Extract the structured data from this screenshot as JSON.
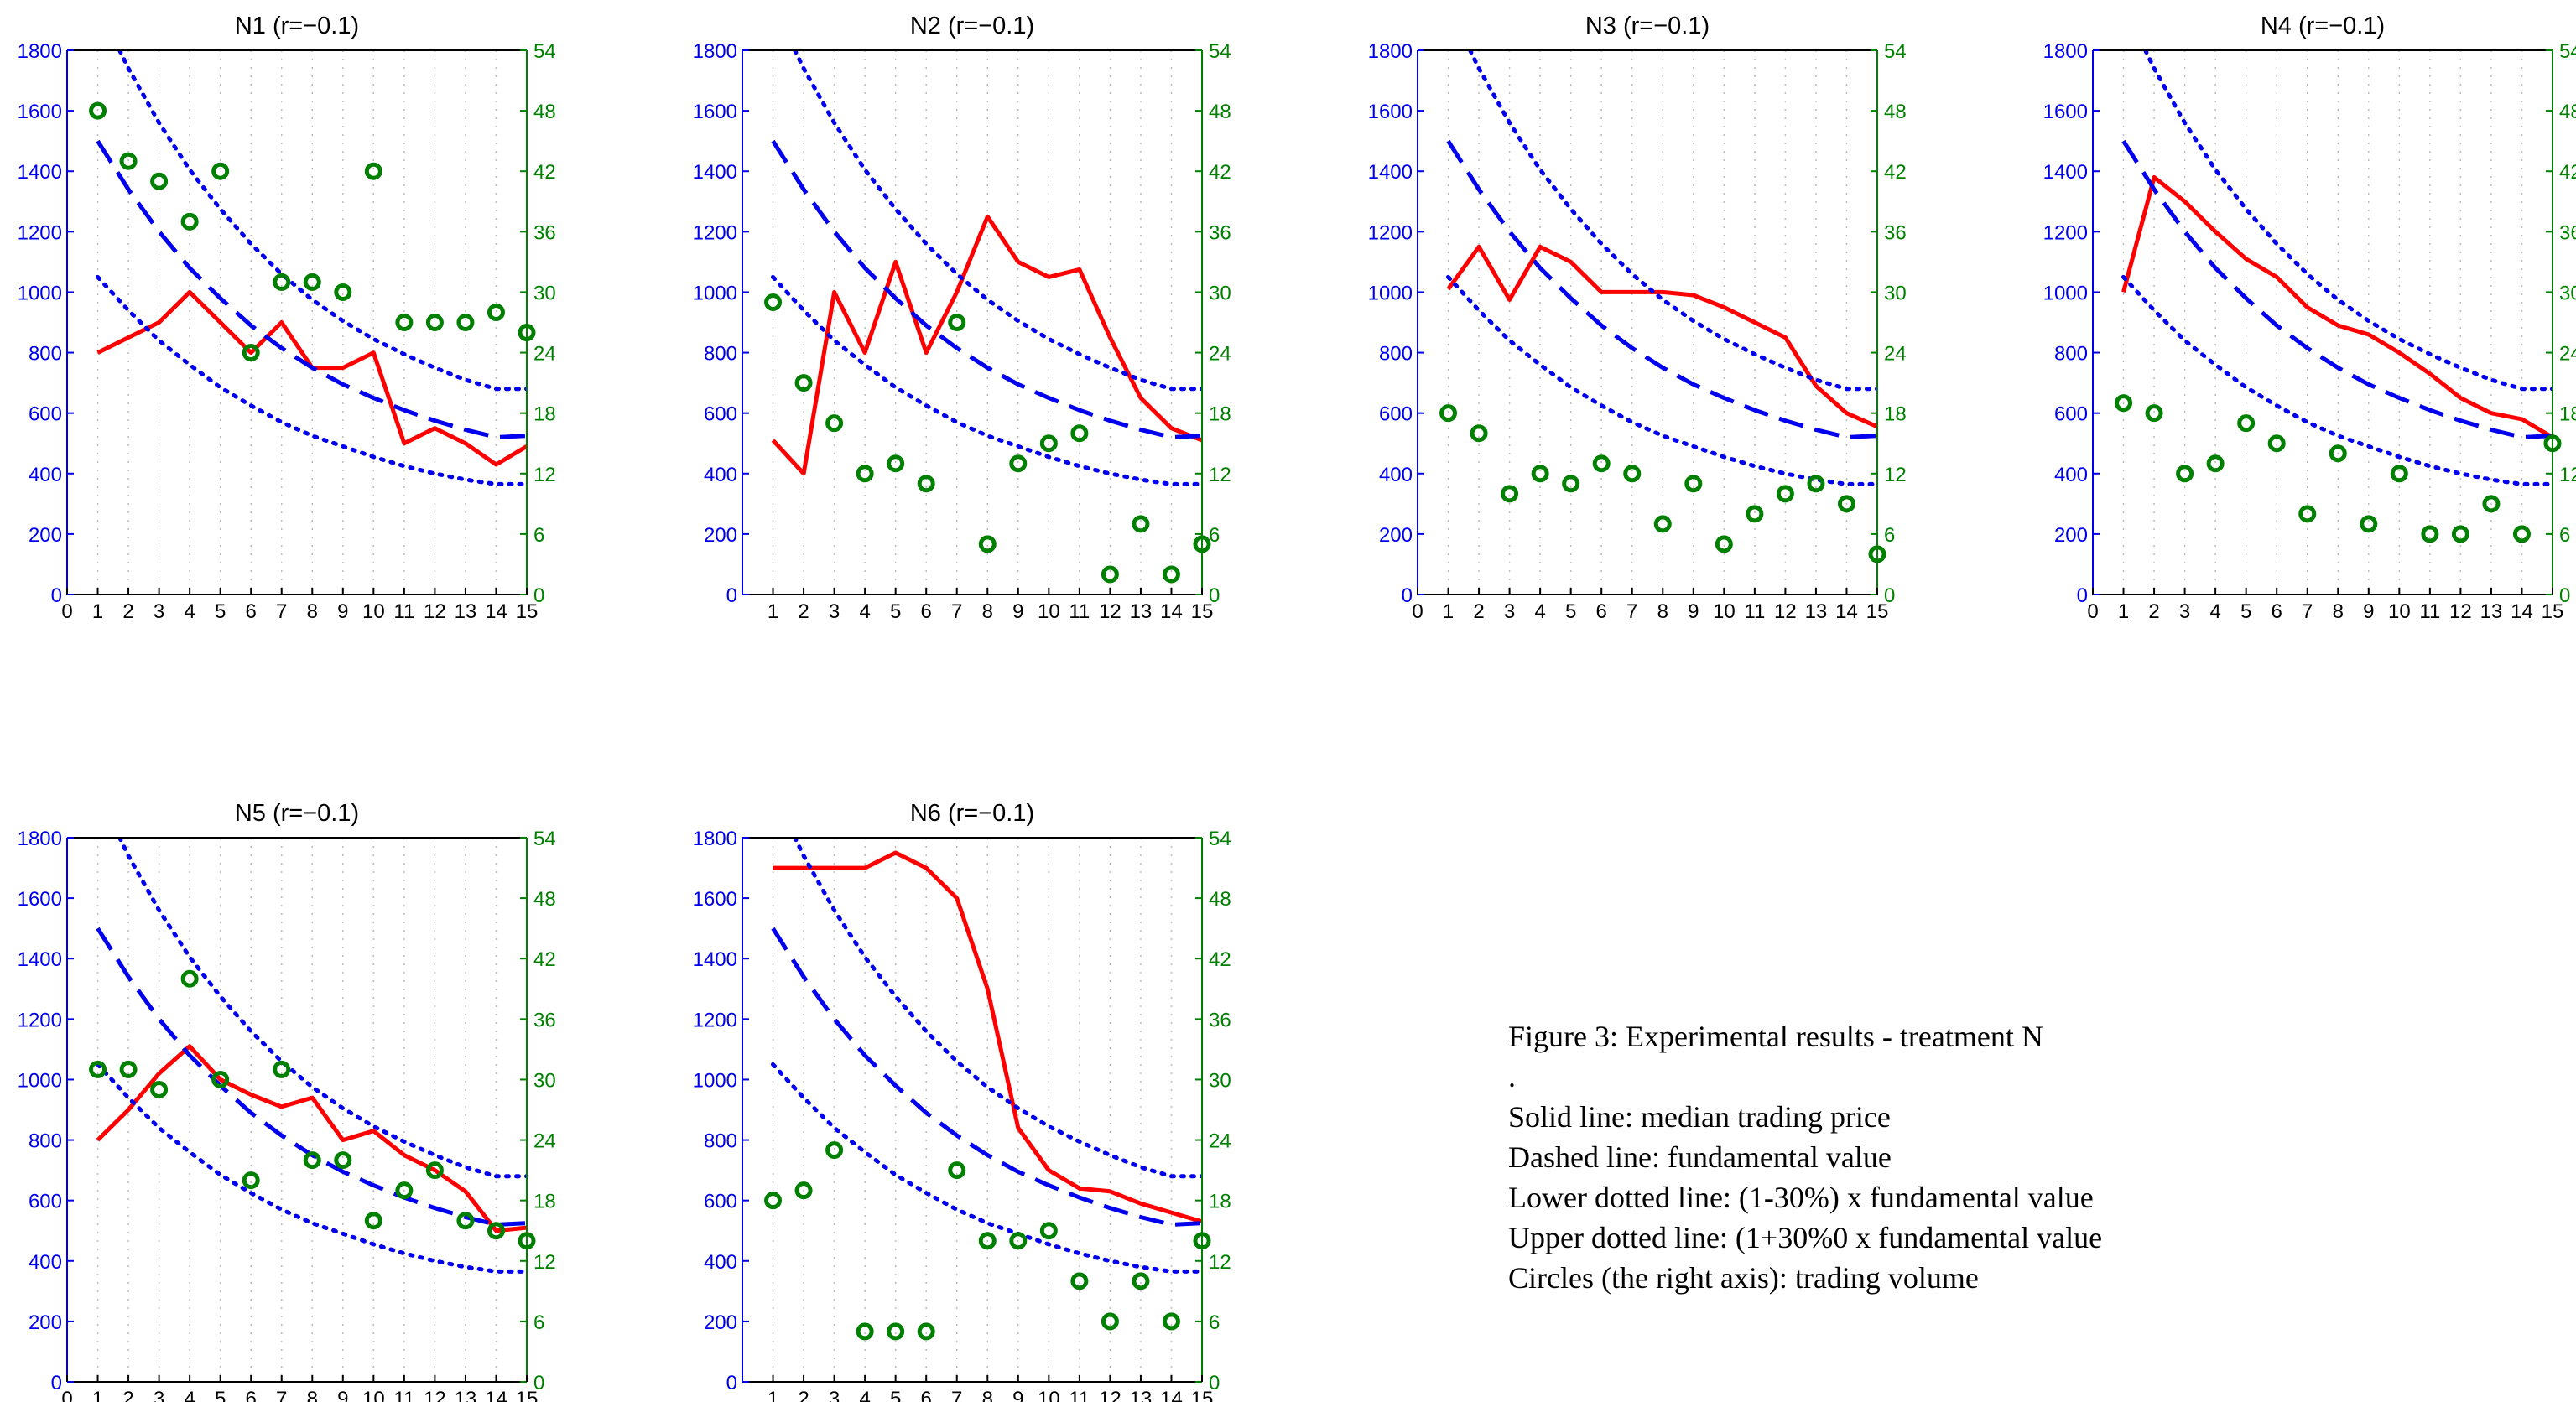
{
  "figure": {
    "caption": {
      "title": "Figure 3: Experimental results - treatment N",
      "dot": ".",
      "lines": [
        "Solid line: median trading price",
        "Dashed line: fundamental value",
        "Lower dotted line: (1-30%) x fundamental value",
        "Upper dotted line: (1+30%0 x fundamental value",
        "Circles (the right axis): trading volume"
      ]
    },
    "colors": {
      "price": "#ff0000",
      "fundamental": "#0000ee",
      "volume": "#008000",
      "left_axis": "#0000ee",
      "right_axis": "#008000"
    }
  },
  "chart_data": [
    {
      "type": "line",
      "title": "N1 (r=−0.1)",
      "x": [
        1,
        2,
        3,
        4,
        5,
        6,
        7,
        8,
        9,
        10,
        11,
        12,
        13,
        14,
        15
      ],
      "xlim": [
        0,
        15
      ],
      "xticks": [
        0,
        1,
        2,
        3,
        4,
        5,
        6,
        7,
        8,
        9,
        10,
        11,
        12,
        13,
        14,
        15
      ],
      "ylim": [
        0,
        1800
      ],
      "yticks": [
        0,
        200,
        400,
        600,
        800,
        1000,
        1200,
        1400,
        1600,
        1800
      ],
      "y2lim": [
        0,
        54
      ],
      "y2ticks": [
        0,
        6,
        12,
        18,
        24,
        30,
        36,
        42,
        48,
        54
      ],
      "grid": "vertical dotted",
      "series": [
        {
          "role": "median trading price",
          "style": "solid",
          "axis": "left",
          "values": [
            800,
            850,
            900,
            1000,
            900,
            800,
            900,
            750,
            750,
            800,
            500,
            550,
            500,
            430,
            490
          ]
        },
        {
          "role": "fundamental value",
          "style": "dashed",
          "axis": "left",
          "values": [
            1500,
            1340,
            1200,
            1080,
            980,
            890,
            815,
            750,
            695,
            650,
            610,
            575,
            545,
            520,
            525
          ]
        },
        {
          "role": "lower dotted",
          "style": "dotted",
          "axis": "left",
          "values": [
            1050,
            940,
            840,
            760,
            685,
            625,
            570,
            525,
            490,
            455,
            425,
            400,
            380,
            365,
            365
          ]
        },
        {
          "role": "upper dotted",
          "style": "dotted",
          "axis": "left",
          "values": [
            1950,
            1740,
            1560,
            1405,
            1275,
            1160,
            1060,
            975,
            905,
            845,
            795,
            750,
            710,
            680,
            680
          ]
        },
        {
          "role": "trading volume",
          "style": "circles",
          "axis": "right",
          "values": [
            48,
            43,
            41,
            37,
            42,
            24,
            31,
            31,
            30,
            42,
            27,
            27,
            27,
            28,
            26
          ]
        }
      ]
    },
    {
      "type": "line",
      "title": "N2 (r=−0.1)",
      "x": [
        1,
        2,
        3,
        4,
        5,
        6,
        7,
        8,
        9,
        10,
        11,
        12,
        13,
        14,
        15
      ],
      "xlim": [
        0,
        15
      ],
      "xticks": [
        1,
        2,
        3,
        4,
        5,
        6,
        7,
        8,
        9,
        10,
        11,
        12,
        13,
        14,
        15
      ],
      "ylim": [
        0,
        1800
      ],
      "yticks": [
        0,
        200,
        400,
        600,
        800,
        1000,
        1200,
        1400,
        1600,
        1800
      ],
      "y2lim": [
        0,
        54
      ],
      "y2ticks": [
        0,
        6,
        12,
        18,
        24,
        30,
        36,
        42,
        48,
        54
      ],
      "grid": "vertical dotted",
      "series": [
        {
          "role": "median trading price",
          "style": "solid",
          "axis": "left",
          "values": [
            510,
            400,
            1000,
            800,
            1100,
            800,
            1000,
            1250,
            1100,
            1050,
            1075,
            850,
            650,
            550,
            510
          ]
        },
        {
          "role": "fundamental value",
          "style": "dashed",
          "axis": "left",
          "values": [
            1500,
            1340,
            1200,
            1080,
            980,
            890,
            815,
            750,
            695,
            650,
            610,
            575,
            545,
            520,
            525
          ]
        },
        {
          "role": "lower dotted",
          "style": "dotted",
          "axis": "left",
          "values": [
            1050,
            940,
            840,
            760,
            685,
            625,
            570,
            525,
            490,
            455,
            425,
            400,
            380,
            365,
            365
          ]
        },
        {
          "role": "upper dotted",
          "style": "dotted",
          "axis": "left",
          "values": [
            1950,
            1740,
            1560,
            1405,
            1275,
            1160,
            1060,
            975,
            905,
            845,
            795,
            750,
            710,
            680,
            680
          ]
        },
        {
          "role": "trading volume",
          "style": "circles",
          "axis": "right",
          "values": [
            29,
            21,
            17,
            12,
            13,
            11,
            27,
            5,
            13,
            15,
            16,
            2,
            7,
            2,
            5
          ]
        }
      ]
    },
    {
      "type": "line",
      "title": "N3 (r=−0.1)",
      "x": [
        1,
        2,
        3,
        4,
        5,
        6,
        7,
        8,
        9,
        10,
        11,
        12,
        13,
        14,
        15
      ],
      "xlim": [
        0,
        15
      ],
      "xticks": [
        0,
        1,
        2,
        3,
        4,
        5,
        6,
        7,
        8,
        9,
        10,
        11,
        12,
        13,
        14,
        15
      ],
      "ylim": [
        0,
        1800
      ],
      "yticks": [
        0,
        200,
        400,
        600,
        800,
        1000,
        1200,
        1400,
        1600,
        1800
      ],
      "y2lim": [
        0,
        54
      ],
      "y2ticks": [
        0,
        6,
        12,
        18,
        24,
        30,
        36,
        42,
        48,
        54
      ],
      "grid": "vertical dotted",
      "series": [
        {
          "role": "median trading price",
          "style": "solid",
          "axis": "left",
          "values": [
            1010,
            1150,
            975,
            1150,
            1100,
            1000,
            1000,
            1000,
            990,
            950,
            900,
            850,
            690,
            600,
            555
          ]
        },
        {
          "role": "fundamental value",
          "style": "dashed",
          "axis": "left",
          "values": [
            1500,
            1340,
            1200,
            1080,
            980,
            890,
            815,
            750,
            695,
            650,
            610,
            575,
            545,
            520,
            525
          ]
        },
        {
          "role": "lower dotted",
          "style": "dotted",
          "axis": "left",
          "values": [
            1050,
            940,
            840,
            760,
            685,
            625,
            570,
            525,
            490,
            455,
            425,
            400,
            380,
            365,
            365
          ]
        },
        {
          "role": "upper dotted",
          "style": "dotted",
          "axis": "left",
          "values": [
            1950,
            1740,
            1560,
            1405,
            1275,
            1160,
            1060,
            975,
            905,
            845,
            795,
            750,
            710,
            680,
            680
          ]
        },
        {
          "role": "trading volume",
          "style": "circles",
          "axis": "right",
          "values": [
            18,
            16,
            10,
            12,
            11,
            13,
            12,
            7,
            11,
            5,
            8,
            10,
            11,
            9,
            4
          ]
        }
      ]
    },
    {
      "type": "line",
      "title": "N4 (r=−0.1)",
      "x": [
        1,
        2,
        3,
        4,
        5,
        6,
        7,
        8,
        9,
        10,
        11,
        12,
        13,
        14,
        15
      ],
      "xlim": [
        0,
        15
      ],
      "xticks": [
        0,
        1,
        2,
        3,
        4,
        5,
        6,
        7,
        8,
        9,
        10,
        11,
        12,
        13,
        14,
        15
      ],
      "ylim": [
        0,
        1800
      ],
      "yticks": [
        0,
        200,
        400,
        600,
        800,
        1000,
        1200,
        1400,
        1600,
        1800
      ],
      "y2lim": [
        0,
        54
      ],
      "y2ticks": [
        0,
        6,
        12,
        18,
        24,
        30,
        36,
        42,
        48,
        54
      ],
      "grid": "vertical dotted",
      "series": [
        {
          "role": "median trading price",
          "style": "solid",
          "axis": "left",
          "values": [
            1000,
            1380,
            1300,
            1200,
            1110,
            1050,
            950,
            890,
            860,
            800,
            730,
            650,
            600,
            580,
            520
          ]
        },
        {
          "role": "fundamental value",
          "style": "dashed",
          "axis": "left",
          "values": [
            1500,
            1340,
            1200,
            1080,
            980,
            890,
            815,
            750,
            695,
            650,
            610,
            575,
            545,
            520,
            525
          ]
        },
        {
          "role": "lower dotted",
          "style": "dotted",
          "axis": "left",
          "values": [
            1050,
            940,
            840,
            760,
            685,
            625,
            570,
            525,
            490,
            455,
            425,
            400,
            380,
            365,
            365
          ]
        },
        {
          "role": "upper dotted",
          "style": "dotted",
          "axis": "left",
          "values": [
            1950,
            1740,
            1560,
            1405,
            1275,
            1160,
            1060,
            975,
            905,
            845,
            795,
            750,
            710,
            680,
            680
          ]
        },
        {
          "role": "trading volume",
          "style": "circles",
          "axis": "right",
          "values": [
            19,
            18,
            12,
            13,
            17,
            15,
            8,
            14,
            7,
            12,
            6,
            6,
            9,
            6,
            15
          ]
        }
      ]
    },
    {
      "type": "line",
      "title": "N5 (r=−0.1)",
      "x": [
        1,
        2,
        3,
        4,
        5,
        6,
        7,
        8,
        9,
        10,
        11,
        12,
        13,
        14,
        15
      ],
      "xlim": [
        0,
        15
      ],
      "xticks": [
        0,
        1,
        2,
        3,
        4,
        5,
        6,
        7,
        8,
        9,
        10,
        11,
        12,
        13,
        14,
        15
      ],
      "ylim": [
        0,
        1800
      ],
      "yticks": [
        0,
        200,
        400,
        600,
        800,
        1000,
        1200,
        1400,
        1600,
        1800
      ],
      "y2lim": [
        0,
        54
      ],
      "y2ticks": [
        0,
        6,
        12,
        18,
        24,
        30,
        36,
        42,
        48,
        54
      ],
      "grid": "vertical dotted",
      "series": [
        {
          "role": "median trading price",
          "style": "solid",
          "axis": "left",
          "values": [
            800,
            900,
            1020,
            1110,
            1000,
            950,
            910,
            940,
            800,
            830,
            750,
            700,
            630,
            500,
            510
          ]
        },
        {
          "role": "fundamental value",
          "style": "dashed",
          "axis": "left",
          "values": [
            1500,
            1340,
            1200,
            1080,
            980,
            890,
            815,
            750,
            695,
            650,
            610,
            575,
            545,
            520,
            525
          ]
        },
        {
          "role": "lower dotted",
          "style": "dotted",
          "axis": "left",
          "values": [
            1050,
            940,
            840,
            760,
            685,
            625,
            570,
            525,
            490,
            455,
            425,
            400,
            380,
            365,
            365
          ]
        },
        {
          "role": "upper dotted",
          "style": "dotted",
          "axis": "left",
          "values": [
            1950,
            1740,
            1560,
            1405,
            1275,
            1160,
            1060,
            975,
            905,
            845,
            795,
            750,
            710,
            680,
            680
          ]
        },
        {
          "role": "trading volume",
          "style": "circles",
          "axis": "right",
          "values": [
            31,
            31,
            29,
            40,
            30,
            20,
            31,
            22,
            22,
            16,
            19,
            21,
            16,
            15,
            14
          ]
        }
      ]
    },
    {
      "type": "line",
      "title": "N6 (r=−0.1)",
      "x": [
        1,
        2,
        3,
        4,
        5,
        6,
        7,
        8,
        9,
        10,
        11,
        12,
        13,
        14,
        15
      ],
      "xlim": [
        0,
        15
      ],
      "xticks": [
        1,
        2,
        3,
        4,
        5,
        6,
        7,
        8,
        9,
        10,
        11,
        12,
        13,
        14,
        15
      ],
      "ylim": [
        0,
        1800
      ],
      "yticks": [
        0,
        200,
        400,
        600,
        800,
        1000,
        1200,
        1400,
        1600,
        1800
      ],
      "y2lim": [
        0,
        54
      ],
      "y2ticks": [
        0,
        6,
        12,
        18,
        24,
        30,
        36,
        42,
        48,
        54
      ],
      "grid": "vertical dotted",
      "series": [
        {
          "role": "median trading price",
          "style": "solid",
          "axis": "left",
          "values": [
            1700,
            1700,
            1700,
            1700,
            1750,
            1700,
            1600,
            1300,
            840,
            700,
            640,
            630,
            590,
            560,
            530
          ]
        },
        {
          "role": "fundamental value",
          "style": "dashed",
          "axis": "left",
          "values": [
            1500,
            1340,
            1200,
            1080,
            980,
            890,
            815,
            750,
            695,
            650,
            610,
            575,
            545,
            520,
            525
          ]
        },
        {
          "role": "lower dotted",
          "style": "dotted",
          "axis": "left",
          "values": [
            1050,
            940,
            840,
            760,
            685,
            625,
            570,
            525,
            490,
            455,
            425,
            400,
            380,
            365,
            365
          ]
        },
        {
          "role": "upper dotted",
          "style": "dotted",
          "axis": "left",
          "values": [
            1950,
            1740,
            1560,
            1405,
            1275,
            1160,
            1060,
            975,
            905,
            845,
            795,
            750,
            710,
            680,
            680
          ]
        },
        {
          "role": "trading volume",
          "style": "circles",
          "axis": "right",
          "values": [
            18,
            19,
            23,
            5,
            5,
            5,
            21,
            14,
            14,
            15,
            10,
            6,
            10,
            6,
            14
          ]
        }
      ]
    }
  ]
}
